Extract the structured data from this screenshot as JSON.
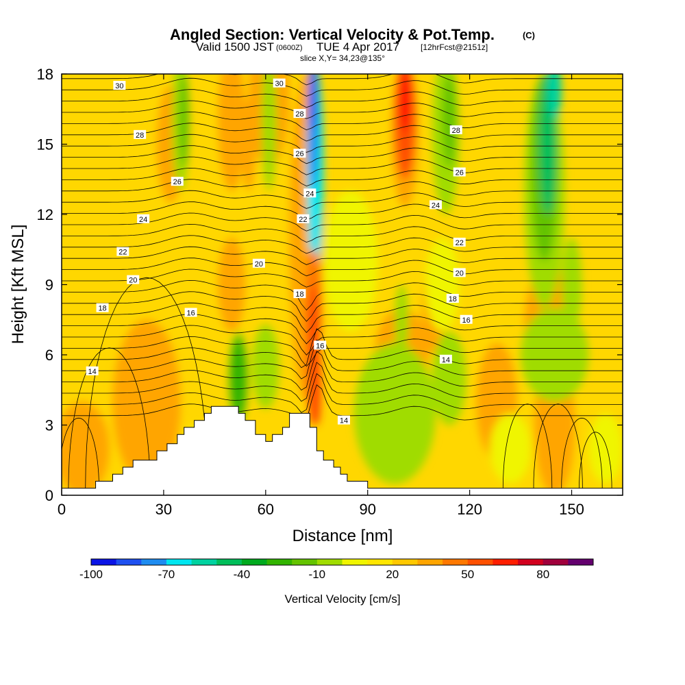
{
  "title": {
    "main": "Angled Section: Vertical Velocity & Pot.Temp.",
    "main_unit": "(C)",
    "valid_prefix": "Valid 1500 JST",
    "valid_z": "(0600Z)",
    "valid_date": "TUE 4 Apr 2017",
    "forecast": "[12hrFcst@2151z]",
    "slice": "slice X,Y= 34,23@135°"
  },
  "chart_data": {
    "type": "heatmap",
    "xlabel": "Distance [nm]",
    "ylabel": "Height [Kft MSL]",
    "xlim": [
      0,
      165
    ],
    "ylim": [
      0,
      18
    ],
    "xticks": [
      0,
      30,
      60,
      90,
      120,
      150
    ],
    "yticks": [
      0,
      3,
      6,
      9,
      12,
      15,
      18
    ],
    "colorbar": {
      "label": "Vertical Velocity [cm/s]",
      "ticks": [
        -100,
        -70,
        -40,
        -10,
        20,
        50,
        80
      ],
      "levels": [
        -100,
        -90,
        -80,
        -70,
        -60,
        -50,
        -40,
        -30,
        -20,
        -10,
        0,
        10,
        20,
        30,
        40,
        50,
        60,
        70,
        80,
        90
      ],
      "colors": [
        "#0a14e6",
        "#1e50f0",
        "#1e8cf0",
        "#00e6f0",
        "#00d2a0",
        "#00be5a",
        "#00aa1e",
        "#32b400",
        "#64c300",
        "#a0dc00",
        "#f0f500",
        "#ffe600",
        "#ffc800",
        "#ffa500",
        "#ff7800",
        "#ff5000",
        "#ff1e00",
        "#d2001e",
        "#a0003c",
        "#64006e"
      ]
    },
    "theta_contour_labels": [
      {
        "value": "30",
        "x": 17,
        "y": 17.5
      },
      {
        "value": "30",
        "x": 64,
        "y": 17.6
      },
      {
        "value": "28",
        "x": 23,
        "y": 15.4
      },
      {
        "value": "28",
        "x": 70,
        "y": 16.3
      },
      {
        "value": "28",
        "x": 116,
        "y": 15.6
      },
      {
        "value": "26",
        "x": 34,
        "y": 13.4
      },
      {
        "value": "26",
        "x": 70,
        "y": 14.6
      },
      {
        "value": "26",
        "x": 117,
        "y": 13.8
      },
      {
        "value": "24",
        "x": 24,
        "y": 11.8
      },
      {
        "value": "24",
        "x": 73,
        "y": 12.9
      },
      {
        "value": "24",
        "x": 110,
        "y": 12.4
      },
      {
        "value": "22",
        "x": 18,
        "y": 10.4
      },
      {
        "value": "22",
        "x": 71,
        "y": 11.8
      },
      {
        "value": "22",
        "x": 117,
        "y": 10.8
      },
      {
        "value": "20",
        "x": 21,
        "y": 9.2
      },
      {
        "value": "20",
        "x": 58,
        "y": 9.9
      },
      {
        "value": "20",
        "x": 117,
        "y": 9.5
      },
      {
        "value": "18",
        "x": 12,
        "y": 8.0
      },
      {
        "value": "18",
        "x": 70,
        "y": 8.6
      },
      {
        "value": "18",
        "x": 115,
        "y": 8.4
      },
      {
        "value": "16",
        "x": 38,
        "y": 7.8
      },
      {
        "value": "16",
        "x": 76,
        "y": 6.4
      },
      {
        "value": "16",
        "x": 119,
        "y": 7.5
      },
      {
        "value": "14",
        "x": 9,
        "y": 5.3
      },
      {
        "value": "14",
        "x": 83,
        "y": 3.2
      },
      {
        "value": "14",
        "x": 113,
        "y": 5.8
      }
    ],
    "terrain_profile": [
      [
        0,
        0.3
      ],
      [
        10,
        0.3
      ],
      [
        10,
        0.6
      ],
      [
        15,
        0.6
      ],
      [
        15,
        0.9
      ],
      [
        18,
        0.9
      ],
      [
        18,
        1.2
      ],
      [
        21,
        1.2
      ],
      [
        21,
        1.5
      ],
      [
        28,
        1.5
      ],
      [
        28,
        1.9
      ],
      [
        31,
        1.9
      ],
      [
        31,
        2.2
      ],
      [
        34,
        2.2
      ],
      [
        34,
        2.6
      ],
      [
        36,
        2.6
      ],
      [
        36,
        2.9
      ],
      [
        39,
        2.9
      ],
      [
        39,
        3.2
      ],
      [
        42,
        3.2
      ],
      [
        42,
        3.5
      ],
      [
        44,
        3.5
      ],
      [
        44,
        3.8
      ],
      [
        52,
        3.8
      ],
      [
        52,
        3.5
      ],
      [
        54,
        3.5
      ],
      [
        54,
        3.2
      ],
      [
        57,
        3.2
      ],
      [
        57,
        2.6
      ],
      [
        60,
        2.6
      ],
      [
        60,
        2.3
      ],
      [
        62,
        2.3
      ],
      [
        62,
        2.6
      ],
      [
        65,
        2.6
      ],
      [
        65,
        2.9
      ],
      [
        67,
        2.9
      ],
      [
        67,
        3.5
      ],
      [
        73,
        3.5
      ],
      [
        73,
        2.9
      ],
      [
        75,
        2.9
      ],
      [
        75,
        1.9
      ],
      [
        77,
        1.9
      ],
      [
        77,
        1.5
      ],
      [
        80,
        1.5
      ],
      [
        80,
        1.2
      ],
      [
        82,
        1.2
      ],
      [
        82,
        0.9
      ],
      [
        84,
        0.9
      ],
      [
        84,
        0.6
      ],
      [
        90,
        0.6
      ],
      [
        90,
        0.3
      ],
      [
        165,
        0.3
      ]
    ]
  }
}
